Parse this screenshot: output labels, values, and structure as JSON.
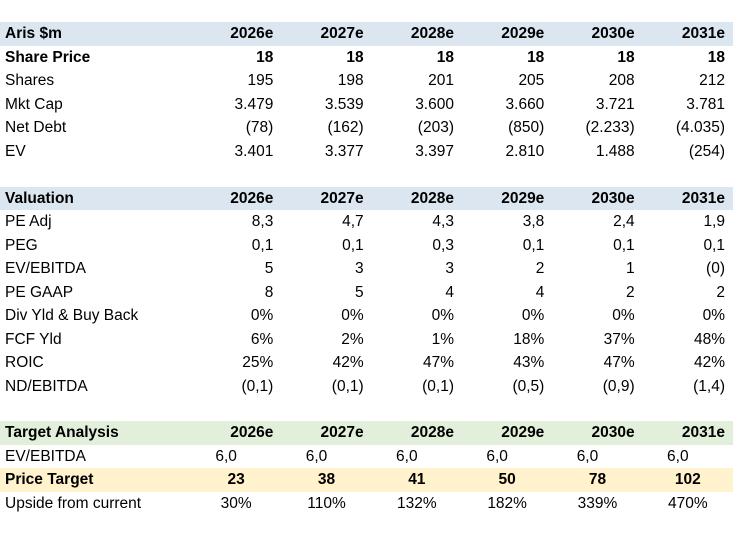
{
  "years": [
    "2026e",
    "2027e",
    "2028e",
    "2029e",
    "2030e",
    "2031e"
  ],
  "market": {
    "title": "Aris $m",
    "rows": [
      {
        "label": "Share Price",
        "values": [
          "18",
          "18",
          "18",
          "18",
          "18",
          "18"
        ]
      },
      {
        "label": "Shares",
        "values": [
          "195",
          "198",
          "201",
          "205",
          "208",
          "212"
        ]
      },
      {
        "label": "Mkt Cap",
        "values": [
          "3.479",
          "3.539",
          "3.600",
          "3.660",
          "3.721",
          "3.781"
        ]
      },
      {
        "label": "Net Debt",
        "values": [
          "(78)",
          "(162)",
          "(203)",
          "(850)",
          "(2.233)",
          "(4.035)"
        ]
      },
      {
        "label": "EV",
        "values": [
          "3.401",
          "3.377",
          "3.397",
          "2.810",
          "1.488",
          "(254)"
        ]
      }
    ]
  },
  "valuation": {
    "title": "Valuation",
    "rows": [
      {
        "label": "PE Adj",
        "values": [
          "8,3",
          "4,7",
          "4,3",
          "3,8",
          "2,4",
          "1,9"
        ]
      },
      {
        "label": "PEG",
        "values": [
          "0,1",
          "0,1",
          "0,3",
          "0,1",
          "0,1",
          "0,1"
        ]
      },
      {
        "label": "EV/EBITDA",
        "values": [
          "5",
          "3",
          "3",
          "2",
          "1",
          "(0)"
        ]
      },
      {
        "label": "PE GAAP",
        "values": [
          "8",
          "5",
          "4",
          "4",
          "2",
          "2"
        ]
      },
      {
        "label": "Div Yld & Buy Back",
        "values": [
          "0%",
          "0%",
          "0%",
          "0%",
          "0%",
          "0%"
        ]
      },
      {
        "label": "FCF Yld",
        "values": [
          "6%",
          "2%",
          "1%",
          "18%",
          "37%",
          "48%"
        ]
      },
      {
        "label": "ROIC",
        "values": [
          "25%",
          "42%",
          "47%",
          "43%",
          "47%",
          "42%"
        ]
      },
      {
        "label": "ND/EBITDA",
        "values": [
          "(0,1)",
          "(0,1)",
          "(0,1)",
          "(0,5)",
          "(0,9)",
          "(1,4)"
        ]
      }
    ]
  },
  "target": {
    "title": "Target Analysis",
    "multiple": {
      "label": "EV/EBITDA",
      "values": [
        "6,0",
        "6,0",
        "6,0",
        "6,0",
        "6,0",
        "6,0"
      ]
    },
    "price_target": {
      "label": "Price Target",
      "values": [
        "23",
        "38",
        "41",
        "50",
        "78",
        "102"
      ]
    },
    "upside": {
      "label": "Upside from current",
      "values": [
        "30%",
        "110%",
        "132%",
        "182%",
        "339%",
        "470%"
      ]
    }
  }
}
